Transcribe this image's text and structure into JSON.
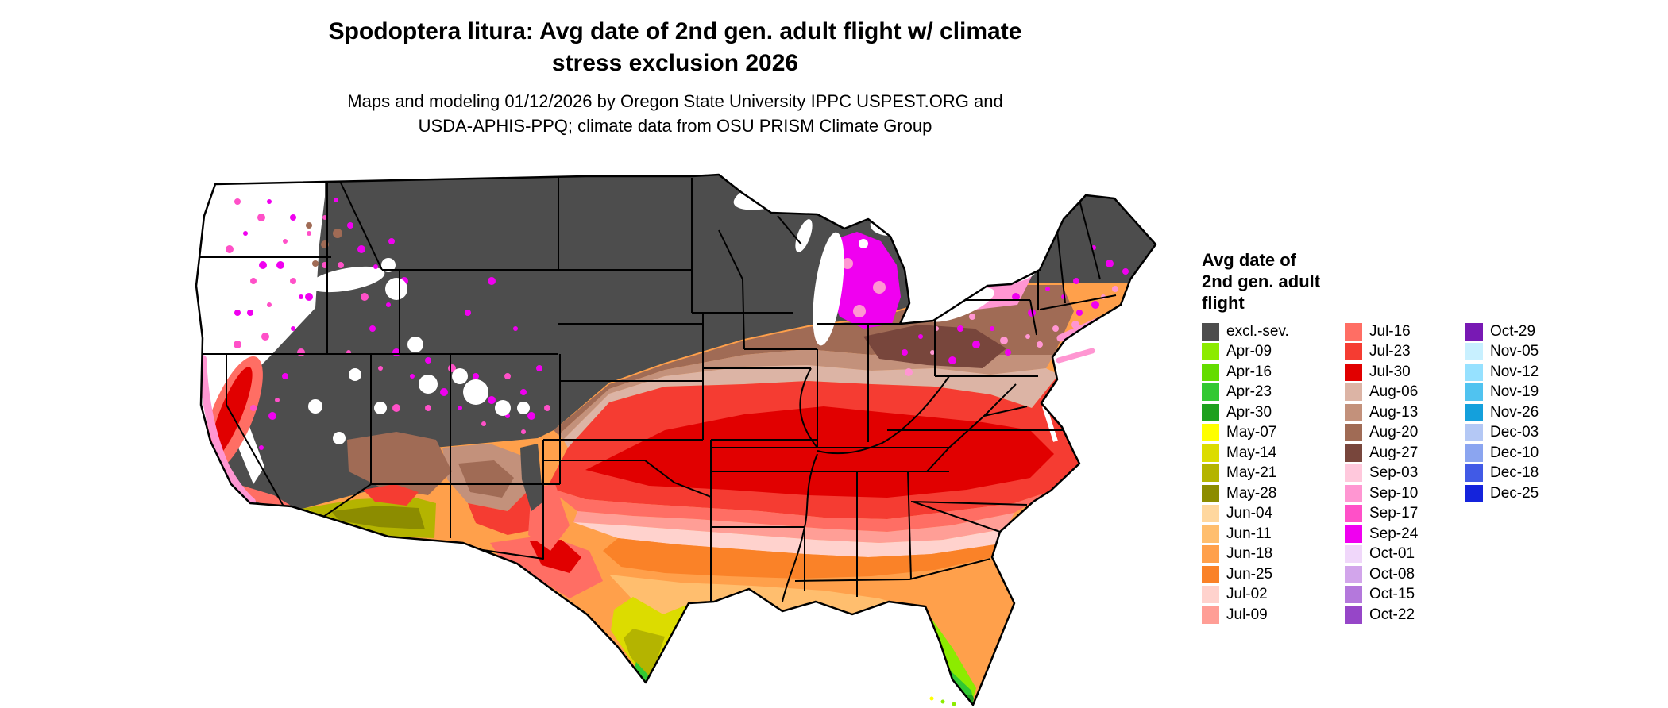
{
  "header": {
    "title_line1": "Spodoptera litura: Avg date of 2nd gen. adult flight w/ climate",
    "title_line2": "stress exclusion 2026",
    "subtitle_line1": "Maps and modeling 01/12/2026 by Oregon State University IPPC USPEST.ORG and",
    "subtitle_line2": "USDA-APHIS-PPQ; climate data from OSU PRISM Climate Group"
  },
  "legend": {
    "title_lines": [
      "Avg date of",
      "2nd gen. adult",
      "flight"
    ],
    "columns": [
      [
        "excl.-sev.",
        "Apr-09",
        "Apr-16",
        "Apr-23",
        "Apr-30",
        "May-07",
        "May-14",
        "May-21",
        "May-28",
        "Jun-04",
        "Jun-11",
        "Jun-18",
        "Jun-25",
        "Jul-02",
        "Jul-09"
      ],
      [
        "Jul-16",
        "Jul-23",
        "Jul-30",
        "Aug-06",
        "Aug-13",
        "Aug-20",
        "Aug-27",
        "Sep-03",
        "Sep-10",
        "Sep-17",
        "Sep-24",
        "Oct-01",
        "Oct-08",
        "Oct-15",
        "Oct-22"
      ],
      [
        "Oct-29",
        "Nov-05",
        "Nov-12",
        "Nov-19",
        "Nov-26",
        "Dec-03",
        "Dec-10",
        "Dec-18",
        "Dec-25"
      ]
    ]
  },
  "palette": {
    "excl.-sev.": "#4D4D4D",
    "Apr-09": "#8CEB00",
    "Apr-16": "#64DC00",
    "Apr-23": "#32C832",
    "Apr-30": "#1EA01E",
    "May-07": "#FFFF00",
    "May-14": "#DCDC00",
    "May-21": "#B4B400",
    "May-28": "#8C8C00",
    "Jun-04": "#FFD79E",
    "Jun-11": "#FFBE6E",
    "Jun-18": "#FFA04B",
    "Jun-25": "#FA8228",
    "Jul-02": "#FFD2CD",
    "Jul-09": "#FF9E96",
    "Jul-16": "#FF6E64",
    "Jul-23": "#F53C32",
    "Jul-30": "#E10000",
    "Aug-06": "#DCB4A5",
    "Aug-13": "#C3917B",
    "Aug-20": "#A06B55",
    "Aug-27": "#78463C",
    "Sep-03": "#FFC8DC",
    "Sep-10": "#FF96D2",
    "Sep-17": "#FF50C8",
    "Sep-24": "#F000F0",
    "Oct-01": "#F0D7FA",
    "Oct-08": "#D2A5EB",
    "Oct-15": "#B478DC",
    "Oct-22": "#9646C8",
    "Oct-29": "#7819B4",
    "Nov-05": "#C8F0FF",
    "Nov-12": "#96E1FF",
    "Nov-19": "#50C3F0",
    "Nov-26": "#14A0DC",
    "Dec-03": "#B4C8F5",
    "Dec-10": "#8BA5F0",
    "Dec-18": "#415AE6",
    "Dec-25": "#1423DC"
  }
}
